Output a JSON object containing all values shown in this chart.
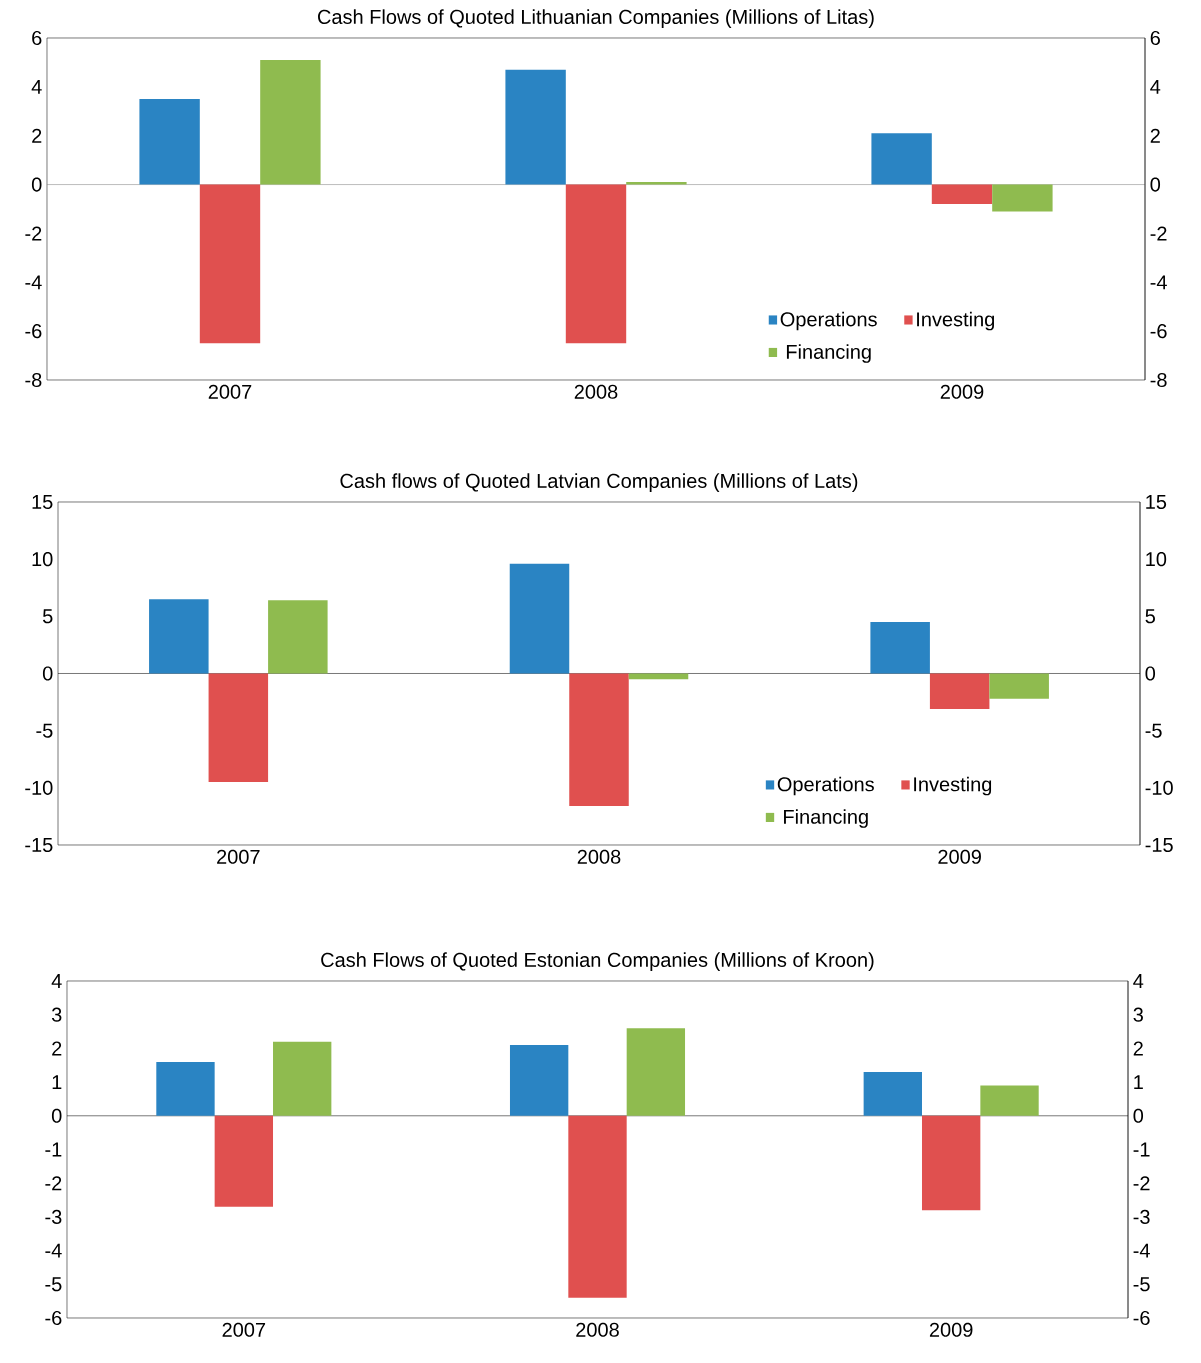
{
  "chart_data": [
    {
      "type": "bar",
      "title": "Cash Flows of Quoted Lithuanian  Companies (Millions of Litas)",
      "categories": [
        "2007",
        "2008",
        "2009"
      ],
      "series": [
        {
          "name": "Operations",
          "color": "#2a84c3",
          "values": [
            3.5,
            4.7,
            2.1
          ]
        },
        {
          "name": "Investing",
          "color": "#e0504f",
          "values": [
            -6.5,
            -6.5,
            -0.8
          ]
        },
        {
          "name": "Financing",
          "color": "#8fbb4f",
          "values": [
            5.1,
            0.1,
            -1.1
          ]
        }
      ],
      "ylim": [
        -8,
        6
      ],
      "yticks": [
        -8,
        -6,
        -4,
        -2,
        0,
        2,
        4,
        6
      ],
      "y2lim": [
        -8,
        6
      ],
      "y2ticks": [
        -8,
        -6,
        -4,
        -2,
        0,
        2,
        4,
        6
      ],
      "legend": "bottom right"
    },
    {
      "type": "bar",
      "title": "Cash flows of Quoted  Latvian Companies  (Millions of Lats)",
      "categories": [
        "2007",
        "2008",
        "2009"
      ],
      "series": [
        {
          "name": "Operations",
          "color": "#2a84c3",
          "values": [
            6.5,
            9.6,
            4.5
          ]
        },
        {
          "name": "Investing",
          "color": "#e0504f",
          "values": [
            -9.5,
            -11.6,
            -3.1
          ]
        },
        {
          "name": "Financing",
          "color": "#8fbb4f",
          "values": [
            6.4,
            -0.5,
            -2.2
          ]
        }
      ],
      "ylim": [
        -15,
        15
      ],
      "yticks": [
        -15,
        -10,
        -5,
        0,
        5,
        10,
        15
      ],
      "y2lim": [
        -15,
        15
      ],
      "y2ticks": [
        -15,
        -10,
        -5,
        0,
        5,
        10,
        15
      ],
      "legend": "bottom right"
    },
    {
      "type": "bar",
      "title": "Cash Flows of Quoted Estonian Companies (Millions of Kroon)",
      "categories": [
        "2007",
        "2008",
        "2009"
      ],
      "series": [
        {
          "color": "#2a84c3",
          "values": [
            1.6,
            2.1,
            1.3
          ]
        },
        {
          "color": "#e0504f",
          "values": [
            -2.7,
            -5.4,
            -2.8
          ]
        },
        {
          "color": "#8fbb4f",
          "values": [
            2.2,
            2.6,
            0.9
          ]
        }
      ],
      "ylim": [
        -6,
        4
      ],
      "yticks": [
        -6,
        -5,
        -4,
        -3,
        -2,
        -1,
        0,
        1,
        2,
        3,
        4
      ],
      "y2lim": [
        -6,
        4
      ],
      "y2ticks": [
        -6,
        -5,
        -4,
        -3,
        -2,
        -1,
        0,
        1,
        2,
        3,
        4
      ]
    }
  ]
}
